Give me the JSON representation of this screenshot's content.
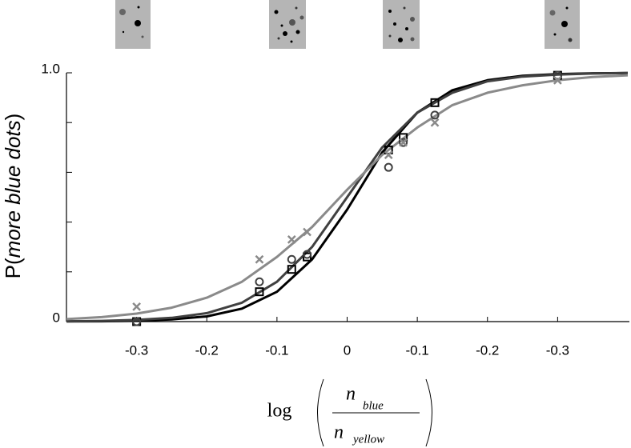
{
  "chart_data": {
    "type": "line",
    "ylabel": [
      "P(",
      "more blue dots",
      ")"
    ],
    "xlabel": {
      "prefix": "log",
      "numerator": "n",
      "numerator_sub": "blue",
      "denominator": "n",
      "denominator_sub": "yellow"
    },
    "xlim": [
      -0.4,
      0.4
    ],
    "ylim": [
      0,
      1
    ],
    "xticks": [
      -0.3,
      -0.2,
      -0.1,
      0,
      {
        "value": 0.1,
        "label": "-0.1"
      },
      {
        "value": 0.2,
        "label": "-0.2"
      },
      {
        "value": 0.3,
        "label": "-0.3"
      }
    ],
    "yticks": [
      0,
      {
        "value": 1,
        "label": "1.0"
      }
    ],
    "yminor_ticks": [
      0.2,
      0.4,
      0.6,
      0.8
    ],
    "x": [
      -0.3,
      -0.125,
      -0.079,
      -0.057,
      0.059,
      0.08,
      0.125,
      0.3
    ],
    "fit_x": [
      -0.4,
      -0.35,
      -0.3,
      -0.25,
      -0.2,
      -0.15,
      -0.1,
      -0.05,
      0,
      0.05,
      0.1,
      0.15,
      0.2,
      0.25,
      0.3,
      0.35,
      0.4
    ],
    "series": [
      {
        "color": "#000000",
        "marker": "square",
        "values": [
          0.0,
          0.12,
          0.21,
          0.26,
          0.69,
          0.74,
          0.88,
          0.99
        ],
        "fit_values": [
          0.0006,
          0.0014,
          0.0035,
          0.0088,
          0.021,
          0.052,
          0.12,
          0.25,
          0.45,
          0.68,
          0.84,
          0.93,
          0.97,
          0.988,
          0.995,
          0.998,
          0.999
        ]
      },
      {
        "color": "#404040",
        "marker": "circle",
        "values": [
          0.0,
          0.16,
          0.25,
          0.27,
          0.62,
          0.72,
          0.83,
          0.99
        ],
        "fit_values": [
          0.0013,
          0.003,
          0.0067,
          0.015,
          0.034,
          0.076,
          0.16,
          0.3,
          0.5,
          0.7,
          0.84,
          0.92,
          0.966,
          0.985,
          0.993,
          0.997,
          0.999
        ]
      },
      {
        "color": "#8a8a8a",
        "marker": "cross",
        "values": [
          0.06,
          0.25,
          0.33,
          0.36,
          0.67,
          0.72,
          0.8,
          0.97
        ],
        "fit_values": [
          0.01,
          0.018,
          0.032,
          0.056,
          0.096,
          0.16,
          0.26,
          0.38,
          0.53,
          0.67,
          0.78,
          0.87,
          0.92,
          0.95,
          0.97,
          0.983,
          0.99
        ]
      }
    ]
  }
}
